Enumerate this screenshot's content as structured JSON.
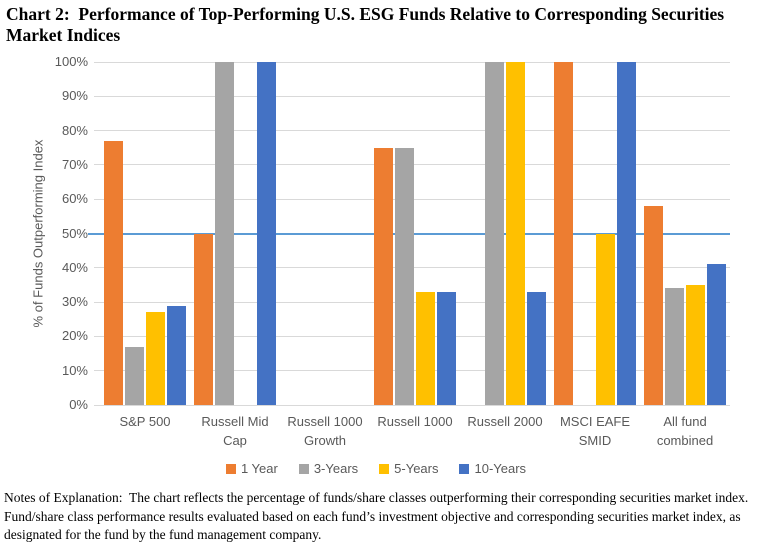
{
  "title": "Chart 2:  Performance of Top-Performing U.S. ESG Funds Relative to Corresponding Securities Market Indices",
  "notes": "Notes of Explanation:  The chart reflects the percentage of funds/share classes outperforming their corresponding securities market index.  Fund/share class performance results evaluated based on each fund’s investment objective and corresponding securities market index, as designated for the fund by the fund management company.",
  "chart_data": {
    "type": "bar",
    "title": "Chart 2:  Performance of Top-Performing U.S. ESG Funds Relative to Corresponding Securities Market Indices",
    "xlabel": "",
    "ylabel": "% of Funds Outperforming Index",
    "ylim": [
      0,
      100
    ],
    "ytick_step": 10,
    "ytick_suffix": "%",
    "grid": true,
    "gridline_color": "#D9D9D9",
    "reference_line": {
      "value": 50,
      "color": "#5B9BD5"
    },
    "legend_position": "bottom",
    "categories": [
      "S&P 500",
      "Russell Mid Cap",
      "Russell 1000 Growth",
      "Russell 1000",
      "Russell 2000",
      "MSCI EAFE SMID",
      "All fund combined"
    ],
    "series": [
      {
        "name": "1 Year",
        "color": "#ED7D31",
        "values": [
          77,
          50,
          null,
          75,
          null,
          100,
          58
        ]
      },
      {
        "name": "3-Years",
        "color": "#A5A5A5",
        "values": [
          17,
          100,
          null,
          75,
          100,
          null,
          34
        ]
      },
      {
        "name": "5-Years",
        "color": "#FFC000",
        "values": [
          27,
          null,
          null,
          33,
          100,
          50,
          35
        ]
      },
      {
        "name": "10-Years",
        "color": "#4472C4",
        "values": [
          29,
          100,
          null,
          33,
          33,
          100,
          41
        ]
      }
    ]
  }
}
